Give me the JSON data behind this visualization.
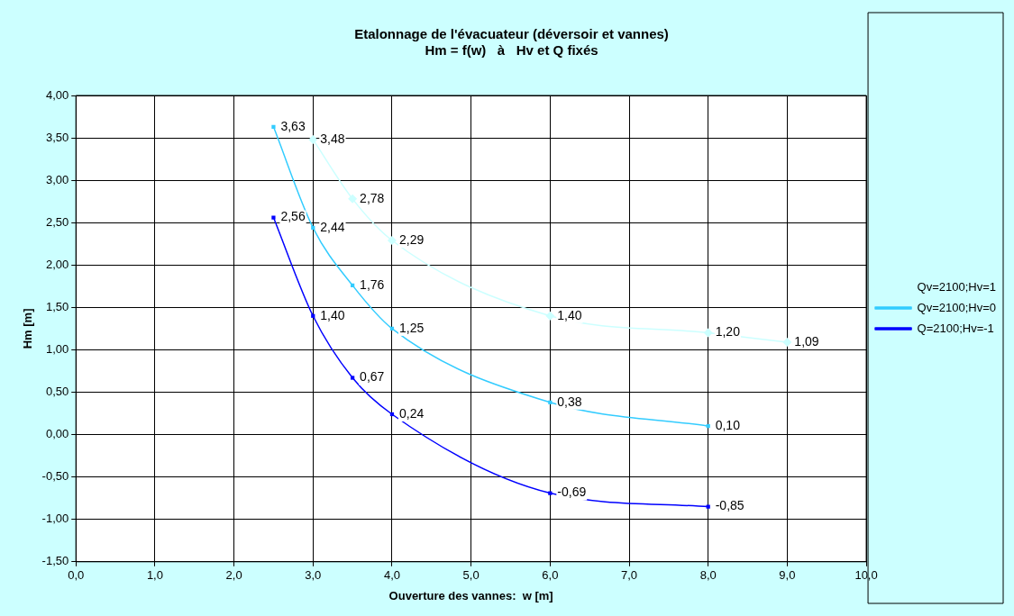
{
  "chart_data": {
    "type": "line",
    "title": "Etalonnage de l'évacuateur (déversoir et vannes)\nHm = f(w)   à   Hv et Q fixés",
    "xlabel": "Ouverture des vannes:  w [m]",
    "ylabel": "Hm [m]",
    "series": [
      {
        "name": "Qv=2100;Hv=1",
        "color": "#ccffff",
        "marker": "diamond",
        "x": [
          3,
          3.5,
          4,
          6,
          8,
          9
        ],
        "values": [
          3.48,
          2.78,
          2.29,
          1.4,
          1.2,
          1.09
        ],
        "value_labels": [
          "3,48",
          "2,78",
          "2,29",
          "1,40",
          "1,20",
          "1,09"
        ]
      },
      {
        "name": "Qv=2100;Hv=0",
        "color": "#33ccff",
        "marker": "square",
        "x": [
          2.5,
          3,
          3.5,
          4,
          6,
          8
        ],
        "values": [
          3.63,
          2.44,
          1.76,
          1.25,
          0.38,
          0.1
        ],
        "value_labels": [
          "3,63",
          "2,44",
          "1,76",
          "1,25",
          "0,38",
          "0,10"
        ]
      },
      {
        "name": "Q=2100;Hv=-1",
        "color": "#0000ff",
        "marker": "square",
        "x": [
          2.5,
          3,
          3.5,
          4,
          6,
          8
        ],
        "values": [
          2.56,
          1.4,
          0.67,
          0.24,
          -0.69,
          -0.85
        ],
        "value_labels": [
          "2,56",
          "1,40",
          "0,67",
          "0,24",
          "-0,69",
          "-0,85"
        ]
      }
    ],
    "xlim": [
      0,
      10
    ],
    "xticks": [
      {
        "value": 0,
        "label": "0,0"
      },
      {
        "value": 1,
        "label": "1,0"
      },
      {
        "value": 2,
        "label": "2,0"
      },
      {
        "value": 3,
        "label": "3,0"
      },
      {
        "value": 4,
        "label": "4,0"
      },
      {
        "value": 5,
        "label": "5,0"
      },
      {
        "value": 6,
        "label": "6,0"
      },
      {
        "value": 7,
        "label": "7,0"
      },
      {
        "value": 8,
        "label": "8,0"
      },
      {
        "value": 9,
        "label": "9,0"
      },
      {
        "value": 10,
        "label": "10,0"
      }
    ],
    "ylim": [
      -1.5,
      4
    ],
    "yticks": [
      {
        "value": -1.5,
        "label": "-1,50"
      },
      {
        "value": -1,
        "label": "-1,00"
      },
      {
        "value": -0.5,
        "label": "-0,50"
      },
      {
        "value": 0,
        "label": "0,00"
      },
      {
        "value": 0.5,
        "label": "0,50"
      },
      {
        "value": 1,
        "label": "1,00"
      },
      {
        "value": 1.5,
        "label": "1,50"
      },
      {
        "value": 2,
        "label": "2,00"
      },
      {
        "value": 2.5,
        "label": "2,50"
      },
      {
        "value": 3,
        "label": "3,00"
      },
      {
        "value": 3.5,
        "label": "3,50"
      },
      {
        "value": 4,
        "label": "4,00"
      }
    ],
    "grid": true,
    "legend": "right",
    "line_style": "solid"
  }
}
